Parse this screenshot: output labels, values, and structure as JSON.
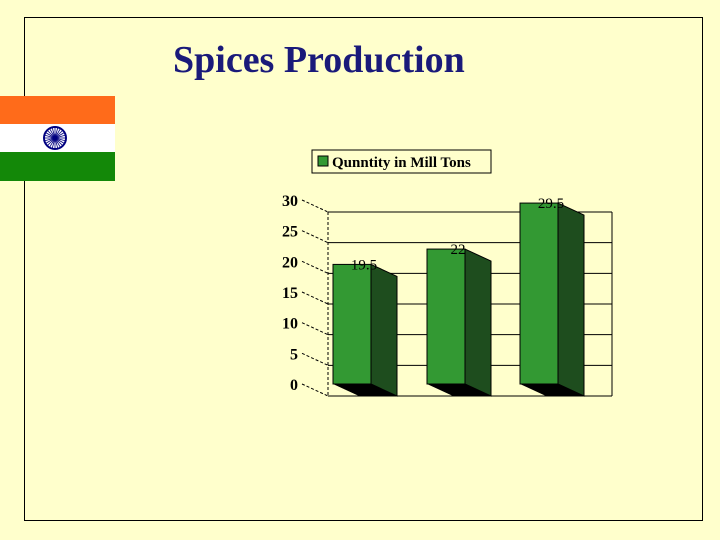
{
  "slide": {
    "title": "Spices Production"
  },
  "colors": {
    "background": "#ffffcc",
    "title": "#1a1a7a",
    "bar_front": "#339933",
    "bar_side": "#1e4d1e",
    "flag_saffron": "#ff6b1a",
    "flag_white": "#ffffff",
    "flag_green": "#138808",
    "chakra": "#000080"
  },
  "flag": {
    "icon": "india-flag-icon"
  },
  "chart_data": {
    "type": "bar",
    "title": "",
    "xlabel": "",
    "ylabel": "",
    "categories": [
      "",
      "",
      ""
    ],
    "series": [
      {
        "name": "Qunntity in Mill Tons",
        "values": [
          19.5,
          22,
          29.5
        ]
      }
    ],
    "data_labels": [
      "19.5",
      "22",
      "29.5"
    ],
    "ylim": [
      0,
      30
    ],
    "yticks": [
      0,
      5,
      10,
      15,
      20,
      25,
      30
    ],
    "grid": true,
    "legend_position": "top",
    "style": "3d"
  }
}
